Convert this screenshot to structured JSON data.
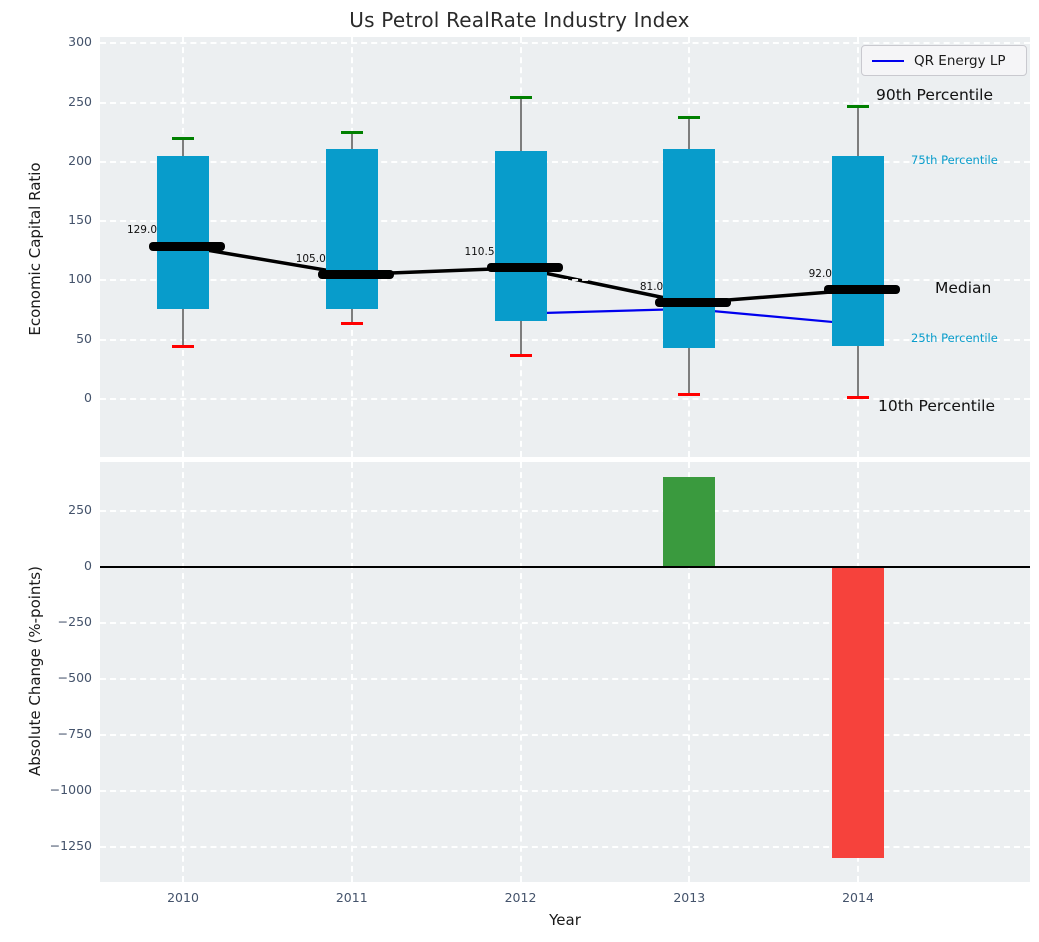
{
  "chart_data": {
    "type": "combo-boxplot-line-bar",
    "title": "Us Petrol RealRate Industry Index",
    "categories": [
      "2010",
      "2011",
      "2012",
      "2013",
      "2014"
    ],
    "xlabel": "Year",
    "colors": {
      "box": "#089ccb",
      "whisker": "#7d7d7d",
      "cap_90th": "#008000",
      "cap_10th": "#ff0000",
      "median": "#000000",
      "company_line": "#0000ee",
      "bar_positive": "#3a9a3e",
      "bar_negative": "#f6423c",
      "panel_bg": "#eceff1",
      "tick_text": "#44536b",
      "annotation_small": "#089ccb",
      "annotation_large": "#111111"
    },
    "top_panel": {
      "type": "percentile_boxplot_with_line",
      "ylabel": "Economic Capital Ratio",
      "yticks": [
        300,
        250,
        200,
        150,
        100,
        50,
        0
      ],
      "ylim": [
        -51,
        305
      ],
      "grid": true,
      "boxes": [
        {
          "year": "2010",
          "p10": 44,
          "p25": 76,
          "median": 129.0,
          "p75": 205,
          "p90": 220
        },
        {
          "year": "2011",
          "p10": 64,
          "p25": 76,
          "median": 105.0,
          "p75": 211,
          "p90": 225
        },
        {
          "year": "2012",
          "p10": 37,
          "p25": 66,
          "median": 110.5,
          "p75": 209,
          "p90": 254
        },
        {
          "year": "2013",
          "p10": 4,
          "p25": 43,
          "median": 81.0,
          "p75": 211,
          "p90": 237
        },
        {
          "year": "2014",
          "p10": 1,
          "p25": 45,
          "median": 92.0,
          "p75": 205,
          "p90": 247
        }
      ],
      "median_labels": [
        "129.0",
        "105.0",
        "110.5",
        "81.0",
        "92.0"
      ],
      "line_series": {
        "name": "QR Energy LP",
        "x": [
          "2012",
          "2013",
          "2014"
        ],
        "values": [
          72,
          76,
          63
        ]
      },
      "annotations": [
        {
          "text": "90th Percentile",
          "size": "large"
        },
        {
          "text": "75th Percentile",
          "size": "small"
        },
        {
          "text": "Median",
          "size": "large"
        },
        {
          "text": "25th Percentile",
          "size": "small"
        },
        {
          "text": "10th Percentile",
          "size": "large"
        }
      ]
    },
    "bottom_panel": {
      "type": "bar",
      "ylabel": "Absolute Change (%-points)",
      "yticks": [
        250,
        0,
        -250,
        -500,
        -750,
        -1000,
        -1250
      ],
      "ylim": [
        -1400,
        470
      ],
      "grid": true,
      "bars": [
        {
          "year": "2010",
          "value": 0
        },
        {
          "year": "2011",
          "value": 0
        },
        {
          "year": "2012",
          "value": 0
        },
        {
          "year": "2013",
          "value": 400
        },
        {
          "year": "2014",
          "value": -1300
        }
      ]
    },
    "legend": {
      "label": "QR Energy LP",
      "position": "top-right"
    }
  }
}
